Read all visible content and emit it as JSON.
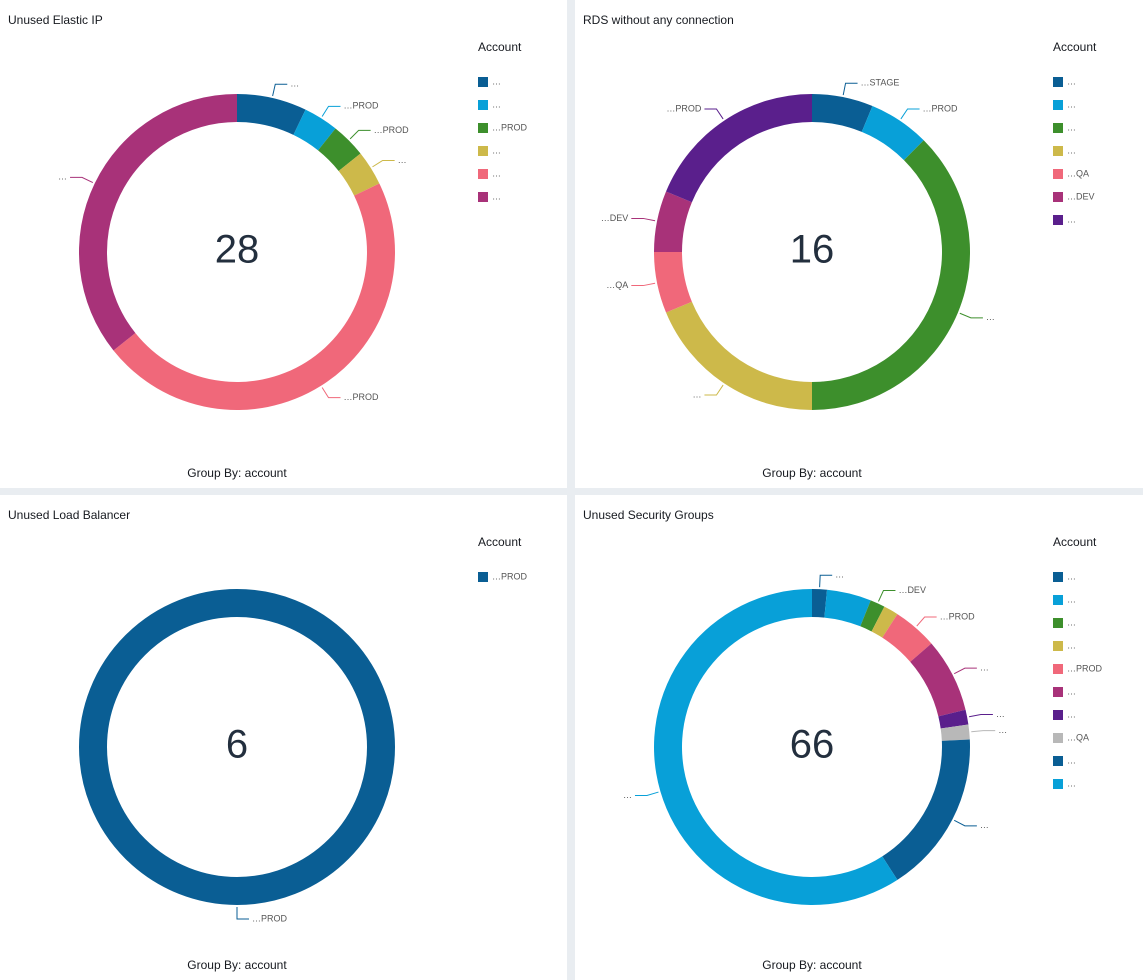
{
  "chart_data": [
    {
      "type": "pie",
      "title": "Unused Elastic IP",
      "center_label": 28,
      "legend_title": "Account",
      "footer": "Group By: account",
      "categories": [
        "…",
        "…",
        "…PROD",
        "…",
        "…",
        "…"
      ],
      "slice_labels": [
        "…",
        "…PROD",
        "…PROD",
        "…",
        "…PROD",
        "…"
      ],
      "values": [
        2,
        1,
        1,
        1,
        13,
        10
      ],
      "colors": [
        "#0a5e94",
        "#08a0d8",
        "#3d8f2c",
        "#cdb94a",
        "#f0687a",
        "#a83279"
      ]
    },
    {
      "type": "pie",
      "title": "RDS without any connection",
      "center_label": 16,
      "legend_title": "Account",
      "footer": "Group By: account",
      "categories": [
        "…",
        "…",
        "…",
        "…",
        "…QA",
        "…DEV",
        "…"
      ],
      "slice_labels": [
        "…STAGE",
        "…PROD",
        "…",
        "…",
        "…QA",
        "…DEV",
        "…PROD"
      ],
      "values": [
        1,
        1,
        6,
        3,
        1,
        1,
        3
      ],
      "colors": [
        "#0a5e94",
        "#08a0d8",
        "#3d8f2c",
        "#cdb94a",
        "#f0687a",
        "#a83279",
        "#5a1f8c"
      ]
    },
    {
      "type": "pie",
      "title": "Unused Load Balancer",
      "center_label": 6,
      "legend_title": "Account",
      "footer": "Group By: account",
      "categories": [
        "…PROD"
      ],
      "slice_labels": [
        "…PROD"
      ],
      "values": [
        6
      ],
      "colors": [
        "#0a5e94"
      ]
    },
    {
      "type": "pie",
      "title": "Unused Security Groups",
      "center_label": 66,
      "legend_title": "Account",
      "footer": "Group By: account",
      "categories": [
        "…",
        "…",
        "…",
        "…",
        "…PROD",
        "…",
        "…",
        "…QA",
        "…",
        "…"
      ],
      "slice_labels": [
        "…",
        null,
        "…DEV",
        null,
        "…PROD",
        "…",
        "…",
        "…",
        "…",
        "…"
      ],
      "values": [
        1,
        3,
        1,
        1,
        3,
        5,
        1,
        1,
        11,
        39
      ],
      "colors": [
        "#0a5e94",
        "#08a0d8",
        "#3d8f2c",
        "#cdb94a",
        "#f0687a",
        "#a83279",
        "#5a1f8c",
        "#b8b8b8",
        "#0a5e94",
        "#08a0d8"
      ]
    }
  ]
}
